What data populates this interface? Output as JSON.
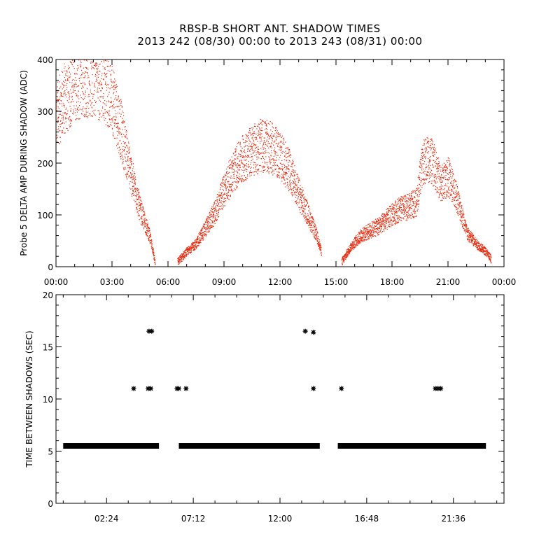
{
  "title": "RBSP-B SHORT ANT. SHADOW TIMES",
  "subtitle": "2013 242 (08/30) 00:00 to 2013 243 (08/31) 00:00",
  "chart_data": [
    {
      "type": "scatter",
      "ylabel": "Probe 5 DELTA AMP DURING SHADOW (ADC)",
      "xlabel": "",
      "xlim": [
        0,
        24
      ],
      "ylim": [
        0,
        400
      ],
      "xtick_labels": [
        "00:00",
        "03:00",
        "06:00",
        "09:00",
        "12:00",
        "15:00",
        "18:00",
        "21:00",
        "00:00"
      ],
      "xtick_values": [
        0,
        3,
        6,
        9,
        12,
        15,
        18,
        21,
        24
      ],
      "ytick_labels": [
        "0",
        "100",
        "200",
        "300",
        "400"
      ],
      "ytick_values": [
        0,
        100,
        200,
        300,
        400
      ],
      "color": "#e8280a",
      "envelope_hours": [
        0.0,
        0.5,
        1.0,
        1.5,
        2.0,
        2.5,
        3.0,
        3.5,
        4.0,
        4.5,
        5.0,
        5.3,
        6.5,
        7.0,
        7.5,
        8.0,
        8.5,
        9.0,
        9.5,
        10.0,
        10.5,
        11.0,
        11.5,
        12.0,
        12.5,
        13.0,
        13.5,
        14.0,
        14.2,
        15.3,
        15.8,
        16.3,
        16.8,
        17.3,
        17.8,
        18.3,
        18.8,
        19.3,
        19.6,
        20.0,
        20.3,
        20.6,
        21.0,
        21.5,
        22.0,
        22.5,
        23.0,
        23.3
      ],
      "envelope_values": [
        290,
        330,
        360,
        370,
        370,
        360,
        330,
        260,
        180,
        110,
        60,
        10,
        10,
        30,
        45,
        75,
        105,
        150,
        185,
        210,
        225,
        235,
        230,
        215,
        185,
        140,
        100,
        55,
        30,
        10,
        40,
        60,
        70,
        80,
        95,
        110,
        115,
        125,
        200,
        210,
        190,
        160,
        175,
        130,
        65,
        45,
        30,
        15
      ]
    },
    {
      "type": "scatter",
      "ylabel": "TIME BETWEEN SHADOWS (SEC)",
      "xlabel": "",
      "xlim": [
        -0.4,
        24.4
      ],
      "ylim": [
        0,
        20
      ],
      "xtick_labels": [
        "02:24",
        "07:12",
        "12:00",
        "16:48",
        "21:36"
      ],
      "xtick_values": [
        2.4,
        7.2,
        12.0,
        16.8,
        21.6
      ],
      "ytick_labels": [
        "0",
        "5",
        "10",
        "15",
        "20"
      ],
      "ytick_values": [
        0,
        5,
        10,
        15,
        20
      ],
      "color": "#000000",
      "baseline_value": 5.5,
      "baseline_segments": [
        [
          0.0,
          5.3
        ],
        [
          6.4,
          14.2
        ],
        [
          15.2,
          23.4
        ]
      ],
      "points": [
        {
          "x": 3.9,
          "y": 11.0
        },
        {
          "x": 4.7,
          "y": 11.0
        },
        {
          "x": 4.85,
          "y": 11.0
        },
        {
          "x": 4.75,
          "y": 16.5
        },
        {
          "x": 4.9,
          "y": 16.5
        },
        {
          "x": 6.3,
          "y": 11.0
        },
        {
          "x": 6.4,
          "y": 11.0
        },
        {
          "x": 6.8,
          "y": 11.0
        },
        {
          "x": 13.4,
          "y": 16.5
        },
        {
          "x": 13.85,
          "y": 16.4
        },
        {
          "x": 13.85,
          "y": 11.0
        },
        {
          "x": 15.4,
          "y": 11.0
        },
        {
          "x": 20.6,
          "y": 11.0
        },
        {
          "x": 20.75,
          "y": 11.0
        },
        {
          "x": 20.9,
          "y": 11.0
        }
      ]
    }
  ]
}
